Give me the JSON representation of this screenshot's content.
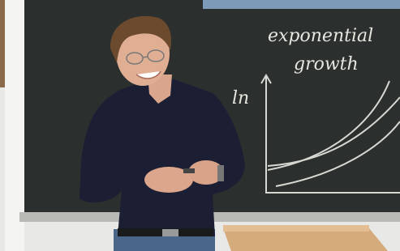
{
  "chalkboard": {
    "lines": [
      "exponential",
      "growth"
    ],
    "axis_label": "ln"
  }
}
